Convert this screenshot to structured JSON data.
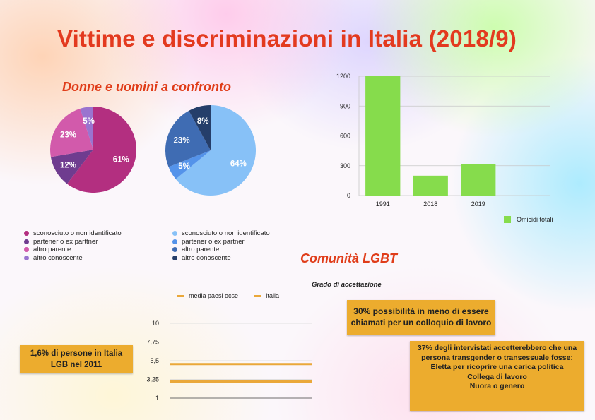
{
  "title": "Vittime e discriminazioni  in Italia (2018/9)",
  "subheading_women_men": "Donne e uomini a confronto",
  "subheading_lgbt": "Comunità LGBT",
  "colors": {
    "title": "#e33a1f",
    "box_fill": "#ecac2e",
    "bar_fill": "#86dc4c",
    "line_series": "#eaa83a"
  },
  "pie_women": {
    "slices": [
      {
        "label": "sconosciuto o non identificato",
        "value": 61,
        "text": "61%",
        "color": "#b32f80"
      },
      {
        "label": "partener o ex parttner",
        "value": 12,
        "text": "12%",
        "color": "#6f3c8f"
      },
      {
        "label": "altro parente",
        "value": 23,
        "text": "23%",
        "color": "#d25aab"
      },
      {
        "label": "altro conoscente",
        "value": 5,
        "text": "5%",
        "color": "#9a74cf"
      }
    ]
  },
  "pie_men": {
    "slices": [
      {
        "label": "sconosciuto o non identificato",
        "value": 64,
        "text": "64%",
        "color": "#87c1f7"
      },
      {
        "label": "partener o ex partner",
        "value": 5,
        "text": "5%",
        "color": "#5493ea"
      },
      {
        "label": "altro parente",
        "value": 23,
        "text": "23%",
        "color": "#3f6cb3"
      },
      {
        "label": "altro conoscente",
        "value": 8,
        "text": "8%",
        "color": "#253e6a"
      }
    ]
  },
  "chart_data": [
    {
      "type": "pie",
      "title": "",
      "labels": [
        "sconosciuto o non identificato",
        "partener o ex parttner",
        "altro parente",
        "altro conoscente"
      ],
      "values": [
        61,
        12,
        23,
        5
      ]
    },
    {
      "type": "pie",
      "title": "",
      "labels": [
        "sconosciuto o non identificato",
        "partener o ex partner",
        "altro parente",
        "altro conoscente"
      ],
      "values": [
        64,
        5,
        23,
        8
      ]
    },
    {
      "type": "bar",
      "title": "",
      "categories": [
        "1991",
        "2018",
        "2019",
        ""
      ],
      "series": [
        {
          "name": "Omicidi totali",
          "values": [
            1200,
            200,
            315,
            null
          ]
        }
      ],
      "ylim": [
        0,
        1200
      ],
      "yticks": [
        "0",
        "300",
        "600",
        "900",
        "1200"
      ],
      "grid": true,
      "legend": "bottom-right"
    },
    {
      "type": "line",
      "title": "Grado di accettazione",
      "series": [
        {
          "name": "media paesi ocse",
          "value": 5.1
        },
        {
          "name": "Italia",
          "value": 3.0
        }
      ],
      "ylim": [
        1,
        10
      ],
      "yticks": [
        "10",
        "7,75",
        "5,5",
        "3,25",
        "1"
      ],
      "legend": "top"
    }
  ],
  "bar_legend": "Omicidi totali",
  "line_chart_title": "Grado di accettazione",
  "line_legend": [
    "media paesi ocse",
    "Italia"
  ],
  "box_lgb": [
    "1,6% di persone in Italia",
    "LGB nel 2011"
  ],
  "box_colloquio": [
    "30% possibilità in meno di essere",
    "chiamati per un colloquio di lavoro"
  ],
  "box_transgender": [
    "37% degli intervistati accetterebbero che una",
    "persona transgender o transessuale fosse:",
    "Eletta per ricoprire una carica politica",
    "Collega di lavoro",
    "Nuora o genero"
  ]
}
